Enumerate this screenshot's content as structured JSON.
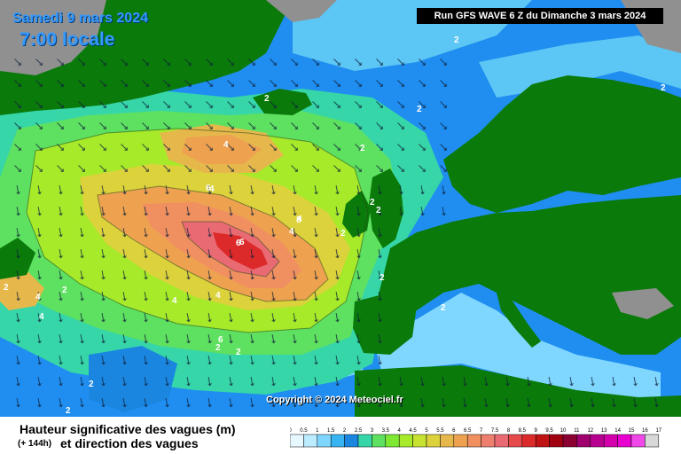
{
  "header": {
    "date": "Samedi 9 mars 2024",
    "time": "7:00 locale",
    "run": "Run GFS WAVE 6 Z du Dimanche 3 mars 2024"
  },
  "map": {
    "copyright": "Copyright © 2024 Meteociel.fr",
    "contour_labels": [
      "2",
      "2",
      "2",
      "2",
      "2",
      "2",
      "2",
      "2",
      "2",
      "2",
      "2",
      "2",
      "2",
      "2",
      "2",
      "2",
      "4",
      "4",
      "4",
      "4",
      "4",
      "4",
      "4",
      "4",
      "6",
      "6",
      "6",
      "6",
      "8"
    ]
  },
  "legend": {
    "title": "Hauteur significative des vagues (m)",
    "hours": "(+ 144h)",
    "subtitle": "et direction des vagues",
    "ticks": [
      "0",
      "0.5",
      "1",
      "1.5",
      "2",
      "2.5",
      "3",
      "3.5",
      "4",
      "4.5",
      "5",
      "5.5",
      "6",
      "6.5",
      "7",
      "7.5",
      "8",
      "8.5",
      "9",
      "9.5",
      "10",
      "11",
      "12",
      "13",
      "14",
      "15",
      "16",
      "17"
    ],
    "colors": [
      "#e8f8ff",
      "#bcecff",
      "#7fd6ff",
      "#38b4f2",
      "#1a86e0",
      "#36d6a8",
      "#5ee060",
      "#7ee832",
      "#a6ea2a",
      "#c8e232",
      "#dcd23c",
      "#e6b84c",
      "#eea250",
      "#f09060",
      "#ee7f6e",
      "#ea6a74",
      "#e64a4a",
      "#dc2a2a",
      "#c01414",
      "#a00010",
      "#8a0030",
      "#a0006e",
      "#b80090",
      "#d400ae",
      "#e800d0",
      "#f048e8",
      "#d8d8d8"
    ]
  },
  "colors": {
    "ocean_deep": "#1f8ef0",
    "land": "#0a7a0a",
    "ice": "#909090",
    "max_wave": "#dc2a2a"
  }
}
